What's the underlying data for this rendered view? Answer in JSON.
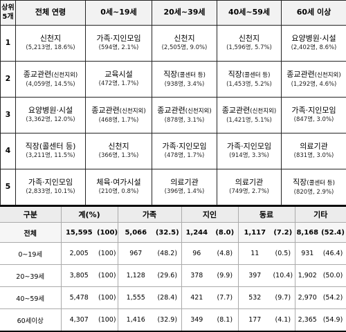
{
  "ranking_table": {
    "header": {
      "corner": [
        "상위",
        "5개"
      ],
      "columns": [
        "전체 연령",
        "0세~19세",
        "20세~39세",
        "40세~59세",
        "60세 이상"
      ]
    },
    "rows": [
      {
        "rank": "1",
        "cells": [
          {
            "label": "신천지",
            "note": "",
            "stat": "(5,213명, 18.6%)"
          },
          {
            "label": "가족·지인모임",
            "note": "",
            "stat": "(594명, 2.1%)"
          },
          {
            "label": "신천지",
            "note": "",
            "stat": "(2,505명, 9.0%)"
          },
          {
            "label": "신천지",
            "note": "",
            "stat": "(1,596명, 5.7%)"
          },
          {
            "label": "요양병원·시설",
            "note": "",
            "stat": "(2,402명, 8.6%)"
          }
        ]
      },
      {
        "rank": "2",
        "cells": [
          {
            "label": "종교관련",
            "note": "(신천지외)",
            "stat": "(4,059명, 14.5%)"
          },
          {
            "label": "교육시설",
            "note": "",
            "stat": "(472명, 1.7%)"
          },
          {
            "label": "직장",
            "note": "(콜센터 등)",
            "stat": "(938명, 3.4%)"
          },
          {
            "label": "직장",
            "note": "(콜센터 등)",
            "stat": "(1,453명, 5.2%)"
          },
          {
            "label": "종교관련",
            "note": "(신천지외)",
            "stat": "(1,292명, 4.6%)"
          }
        ]
      },
      {
        "rank": "3",
        "cells": [
          {
            "label": "요양병원·시설",
            "note": "",
            "stat": "(3,362명, 12.0%)"
          },
          {
            "label": "종교관련",
            "note": "(신천지외)",
            "stat": "(468명, 1.7%)"
          },
          {
            "label": "종교관련",
            "note": "(신천지외)",
            "stat": "(878명, 3.1%)"
          },
          {
            "label": "종교관련",
            "note": "(신천지외)",
            "stat": "(1,421명, 5.1%)"
          },
          {
            "label": "가족·지인모임",
            "note": "",
            "stat": "(847명, 3.0%)"
          }
        ]
      },
      {
        "rank": "4",
        "cells": [
          {
            "label": "직장(콜센터 등)",
            "note": "",
            "stat": "(3,211명, 11.5%)"
          },
          {
            "label": "신천지",
            "note": "",
            "stat": "(366명, 1.3%)"
          },
          {
            "label": "가족·지인모임",
            "note": "",
            "stat": "(478명, 1.7%)"
          },
          {
            "label": "가족·지인모임",
            "note": "",
            "stat": "(914명, 3.3%)"
          },
          {
            "label": "의료기관",
            "note": "",
            "stat": "(831명, 3.0%)"
          }
        ]
      },
      {
        "rank": "5",
        "cells": [
          {
            "label": "가족·지인모임",
            "note": "",
            "stat": "(2,833명, 10.1%)"
          },
          {
            "label": "체육·여가시설",
            "note": "",
            "stat": "(210명, 0.8%)"
          },
          {
            "label": "의료기관",
            "note": "",
            "stat": "(396명, 1.4%)"
          },
          {
            "label": "의료기관",
            "note": "",
            "stat": "(749명, 2.7%)"
          },
          {
            "label": "직장",
            "note": "(콜센터 등)",
            "stat": "(820명, 2.9%)"
          }
        ]
      }
    ]
  },
  "breakdown_table": {
    "header": [
      "구분",
      "계(%)",
      "가족",
      "지인",
      "동료",
      "기타"
    ],
    "rows": [
      {
        "label": "전체",
        "values": [
          "15,595",
          "(100)",
          "5,066",
          "(32.5)",
          "1,244",
          "(8.0)",
          "1,117",
          "(7.2)",
          "8,168",
          "(52.4)"
        ]
      },
      {
        "label": "0~19세",
        "values": [
          "2,005",
          "(100)",
          "967",
          "(48.2)",
          "96",
          "(4.8)",
          "11",
          "(0.5)",
          "931",
          "(46.4)"
        ]
      },
      {
        "label": "20~39세",
        "values": [
          "3,805",
          "(100)",
          "1,128",
          "(29.6)",
          "378",
          "(9.9)",
          "397",
          "(10.4)",
          "1,902",
          "(50.0)"
        ]
      },
      {
        "label": "40~59세",
        "values": [
          "5,478",
          "(100)",
          "1,555",
          "(28.4)",
          "421",
          "(7.7)",
          "532",
          "(9.7)",
          "2,970",
          "(54.2)"
        ]
      },
      {
        "label": "60세이상",
        "values": [
          "4,307",
          "(100)",
          "1,416",
          "(32.9)",
          "349",
          "(8.1)",
          "177",
          "(4.1)",
          "2,365",
          "(54.9)"
        ]
      }
    ]
  }
}
